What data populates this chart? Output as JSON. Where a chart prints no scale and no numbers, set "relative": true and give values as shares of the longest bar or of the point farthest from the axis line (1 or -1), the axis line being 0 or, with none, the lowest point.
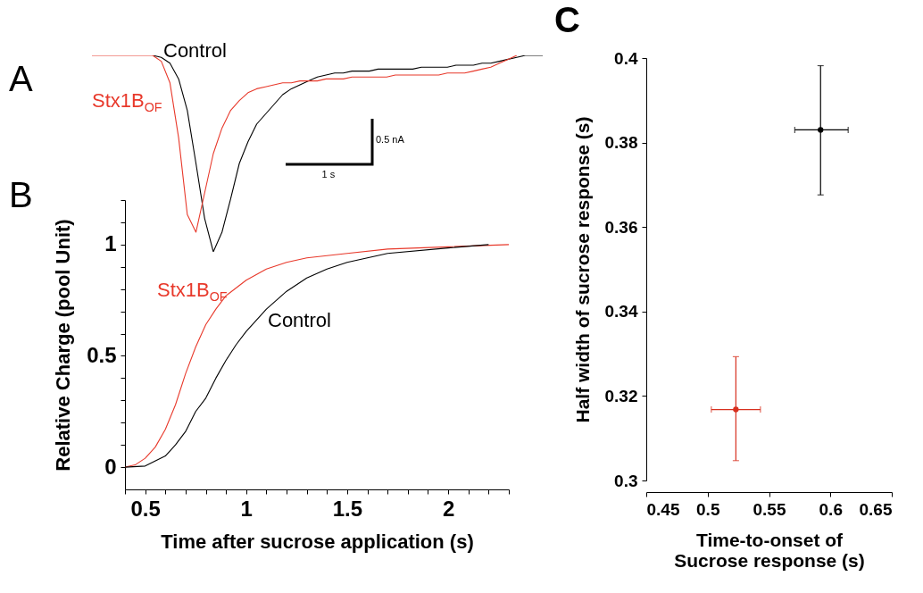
{
  "chart_data": [
    {
      "type": "line",
      "title": "A",
      "relative": true,
      "annotations": [
        "0.5 nA",
        "1 s"
      ],
      "categories": [
        null,
        null,
        null,
        null,
        null,
        null,
        null,
        null,
        null,
        null,
        null,
        null,
        null,
        null,
        null,
        null,
        null,
        null,
        null,
        null,
        null,
        null,
        null,
        null,
        null,
        null,
        null,
        null,
        null,
        null,
        null,
        null,
        null,
        null,
        null,
        null,
        null,
        null,
        null,
        null,
        null,
        null,
        null,
        null,
        null,
        null,
        null,
        null,
        null,
        null,
        null,
        null,
        null
      ],
      "series": [
        {
          "name": "Control",
          "color": "#000000",
          "values": [
            null,
            null,
            null,
            null,
            null,
            null,
            null,
            1,
            0.99,
            0.96,
            0.88,
            0.72,
            0.45,
            0.17,
            0,
            0.1,
            0.27,
            0.45,
            0.56,
            0.65,
            0.7,
            0.75,
            0.8,
            0.83,
            0.85,
            0.87,
            0.89,
            0.9,
            0.91,
            0.91,
            0.92,
            0.92,
            0.92,
            0.93,
            0.93,
            0.93,
            0.93,
            0.93,
            0.94,
            0.94,
            0.94,
            0.94,
            0.95,
            0.95,
            0.95,
            0.96,
            0.96,
            0.97,
            0.98,
            0.99,
            1,
            1,
            1
          ]
        },
        {
          "name": "Stx1B$_{OF}$",
          "color": "#e8392b",
          "values": [
            1,
            1,
            1,
            1,
            1,
            1,
            1,
            1,
            0.97,
            0.86,
            0.58,
            0.19,
            0.1,
            0.3,
            0.5,
            0.63,
            0.72,
            0.77,
            0.81,
            0.83,
            0.84,
            0.85,
            0.86,
            0.86,
            0.87,
            0.87,
            0.87,
            0.88,
            0.88,
            0.88,
            0.89,
            0.89,
            0.89,
            0.89,
            0.89,
            0.9,
            0.9,
            0.9,
            0.9,
            0.9,
            0.9,
            0.91,
            0.91,
            0.91,
            0.92,
            0.93,
            0.94,
            0.96,
            0.98,
            1,
            null,
            null,
            null
          ]
        }
      ]
    },
    {
      "type": "line",
      "title": "B",
      "xlabel": "Time after sucrose application (s)",
      "ylabel": "Relative Charge (pool Unit)",
      "xlim": [
        0.4,
        2.3
      ],
      "ylim": [
        -0.1,
        1.2
      ],
      "xticks": [
        {
          "value": 0.4,
          "label": null
        },
        0.5,
        {
          "value": 0.6,
          "label": null
        },
        {
          "value": 0.7,
          "label": null
        },
        {
          "value": 0.8,
          "label": null
        },
        {
          "value": 0.9,
          "label": null
        },
        1,
        {
          "value": 1.1,
          "label": null
        },
        {
          "value": 1.2,
          "label": null
        },
        {
          "value": 1.3,
          "label": null
        },
        {
          "value": 1.4,
          "label": null
        },
        1.5,
        {
          "value": 1.6,
          "label": null
        },
        {
          "value": 1.7,
          "label": null
        },
        {
          "value": 1.8,
          "label": null
        },
        {
          "value": 1.9,
          "label": null
        },
        2,
        {
          "value": 2.1,
          "label": null
        },
        {
          "value": 2.2,
          "label": null
        },
        {
          "value": 2.3,
          "label": null
        }
      ],
      "yticks": [
        0,
        {
          "value": 0.1,
          "label": null
        },
        {
          "value": 0.2,
          "label": null
        },
        {
          "value": 0.3,
          "label": null
        },
        {
          "value": 0.4,
          "label": null
        },
        0.5,
        {
          "value": 0.6,
          "label": null
        },
        {
          "value": 0.7,
          "label": null
        },
        {
          "value": 0.8,
          "label": null
        },
        {
          "value": 0.9,
          "label": null
        },
        1,
        {
          "value": 1.1,
          "label": null
        },
        {
          "value": 1.2,
          "label": null
        }
      ],
      "series": [
        {
          "name": "Stx1B$_{OF}$",
          "color": "#e8392b",
          "x": [
            0.4,
            0.45,
            0.5,
            0.55,
            0.6,
            0.65,
            0.7,
            0.75,
            0.8,
            0.85,
            0.9,
            1.0,
            1.1,
            1.2,
            1.3,
            1.5,
            1.7,
            2.0,
            2.3
          ],
          "values": [
            0,
            0.01,
            0.04,
            0.09,
            0.17,
            0.28,
            0.42,
            0.54,
            0.64,
            0.71,
            0.77,
            0.84,
            0.89,
            0.92,
            0.94,
            0.96,
            0.98,
            0.99,
            1
          ]
        },
        {
          "name": "Control",
          "color": "#000000",
          "x": [
            0.4,
            0.5,
            0.6,
            0.65,
            0.7,
            0.75,
            0.8,
            0.85,
            0.9,
            0.95,
            1.0,
            1.1,
            1.2,
            1.3,
            1.4,
            1.5,
            1.7,
            2.0,
            2.2
          ],
          "values": [
            0,
            0.005,
            0.05,
            0.1,
            0.16,
            0.25,
            0.31,
            0.4,
            0.48,
            0.55,
            0.61,
            0.71,
            0.79,
            0.85,
            0.89,
            0.92,
            0.96,
            0.985,
            1
          ]
        }
      ]
    },
    {
      "type": "scatter",
      "title": "C",
      "xlabel": "Time-to-onset of\nSucrose response (s)",
      "ylabel": "Half width of sucrose response (s)",
      "xlim": [
        0.45,
        0.65
      ],
      "ylim": [
        0.3,
        0.4
      ],
      "xticks": [
        0.45,
        0.5,
        0.55,
        0.6,
        0.65
      ],
      "yticks": [
        0.3,
        0.32,
        0.34,
        0.36,
        0.38,
        0.4
      ],
      "marker": "circle",
      "series": [
        {
          "color": "#000000",
          "x": [
            0.592
          ],
          "values": [
            0.383
          ],
          "errors": [
            [
              0.3676,
              0.3982
            ]
          ],
          "xerrors": [
            [
              0.571,
              0.6145
            ]
          ]
        },
        {
          "color": "#d7301f",
          "x": [
            0.523
          ],
          "values": [
            0.3168
          ],
          "errors": [
            [
              0.3047,
              0.3293
            ]
          ],
          "xerrors": [
            [
              0.503,
              0.543
            ]
          ]
        }
      ]
    }
  ]
}
